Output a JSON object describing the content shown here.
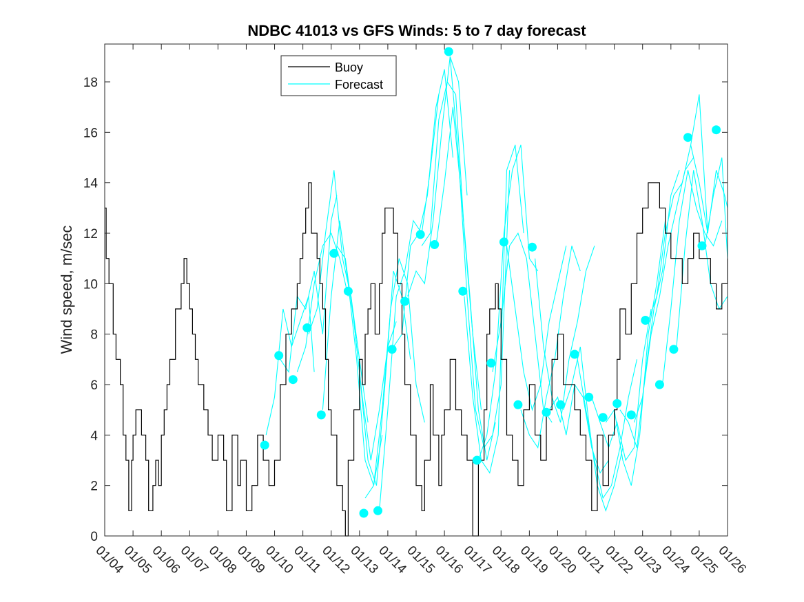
{
  "chart_data": {
    "type": "line",
    "title": "NDBC 41013 vs GFS Winds: 5 to 7 day forecast",
    "xlabel": "",
    "ylabel": "Wind speed, m/sec",
    "xlim": [
      0,
      22
    ],
    "ylim": [
      0,
      19.5
    ],
    "yticks": [
      0,
      2,
      4,
      6,
      8,
      10,
      12,
      14,
      16,
      18
    ],
    "xtick_labels": [
      "01/04",
      "01/05",
      "01/06",
      "01/07",
      "01/08",
      "01/09",
      "01/10",
      "01/11",
      "01/12",
      "01/13",
      "01/14",
      "01/15",
      "01/16",
      "01/17",
      "01/18",
      "01/19",
      "01/20",
      "01/21",
      "01/22",
      "01/23",
      "01/24",
      "01/25",
      "01/26"
    ],
    "legend": {
      "position": "top-center",
      "entries": [
        "Buoy",
        "Forecast"
      ]
    },
    "colors": {
      "buoy": "#000000",
      "forecast": "#00FFFF",
      "markers": "#00FFFF"
    },
    "series": [
      {
        "name": "Buoy",
        "x": [
          0,
          0.05,
          0.15,
          0.3,
          0.4,
          0.55,
          0.65,
          0.75,
          0.85,
          0.95,
          1.0,
          1.1,
          1.2,
          1.3,
          1.45,
          1.55,
          1.7,
          1.8,
          1.9,
          2.0,
          2.1,
          2.2,
          2.3,
          2.5,
          2.7,
          2.8,
          2.9,
          3.0,
          3.1,
          3.2,
          3.3,
          3.5,
          3.65,
          3.8,
          4.0,
          4.2,
          4.3,
          4.5,
          4.7,
          4.8,
          5.0,
          5.2,
          5.4,
          5.6,
          5.8,
          6.0,
          6.2,
          6.4,
          6.6,
          6.8,
          6.9,
          7.0,
          7.1,
          7.2,
          7.3,
          7.5,
          7.6,
          7.7,
          7.8,
          7.9,
          8.0,
          8.2,
          8.4,
          8.5,
          8.6,
          8.8,
          9.0,
          9.1,
          9.2,
          9.3,
          9.4,
          9.55,
          9.7,
          9.8,
          9.9,
          10.1,
          10.2,
          10.35,
          10.5,
          10.6,
          10.8,
          11.0,
          11.2,
          11.3,
          11.5,
          11.6,
          11.8,
          11.9,
          12.0,
          12.2,
          12.4,
          12.6,
          12.8,
          13.0,
          13.2,
          13.4,
          13.5,
          13.6,
          13.8,
          13.9,
          14.0,
          14.2,
          14.4,
          14.6,
          14.8,
          15.0,
          15.2,
          15.4,
          15.6,
          15.8,
          16.0,
          16.2,
          16.4,
          16.6,
          16.8,
          17.0,
          17.2,
          17.4,
          17.6,
          17.8,
          18.0,
          18.1,
          18.2,
          18.4,
          18.6,
          18.8,
          19.0,
          19.2,
          19.4,
          19.6,
          19.8,
          20.0,
          20.2,
          20.4,
          20.6,
          20.8,
          21.0,
          21.2,
          21.4,
          21.6,
          21.8,
          22.0
        ],
        "values": [
          13,
          11,
          10,
          8,
          7,
          6,
          4,
          3,
          1,
          3,
          4,
          5,
          5,
          4,
          3,
          1,
          2,
          3,
          2,
          4,
          5,
          6,
          7,
          9,
          10,
          11,
          10,
          9,
          8,
          7,
          6,
          5,
          4,
          3,
          4,
          3,
          1,
          4,
          2,
          3,
          1,
          2,
          4,
          3,
          2,
          3,
          6,
          8,
          9,
          10,
          11,
          12,
          13,
          14,
          12,
          11,
          10,
          9,
          7,
          5,
          4,
          2,
          1,
          0,
          3,
          5,
          7,
          6,
          8,
          9,
          10,
          8,
          10,
          12,
          13,
          13,
          12,
          10,
          8,
          6,
          4,
          2,
          1,
          3,
          6,
          4,
          2,
          4,
          5,
          7,
          5,
          4,
          3,
          0,
          3,
          5,
          8,
          9,
          10,
          9,
          7,
          4,
          3,
          2,
          5,
          6,
          4,
          3,
          5,
          7,
          8,
          6,
          6,
          5,
          4,
          3,
          1,
          4,
          2,
          4,
          5,
          7,
          9,
          8,
          10,
          12,
          13,
          14,
          14,
          13,
          12,
          11,
          11,
          10,
          11,
          12,
          11,
          11,
          10,
          9,
          10,
          11
        ],
        "note": "Buoy series is the piecewise-step observed wind speed; values approximated from the plotted trace, and the renderer draws this trace from the x/values list above."
      }
    ],
    "forecast_markers": {
      "x": [
        5.65,
        6.15,
        6.65,
        7.15,
        7.65,
        8.1,
        8.6,
        9.15,
        9.65,
        10.15,
        10.6,
        11.15,
        11.65,
        12.15,
        12.65,
        13.15,
        13.65,
        14.1,
        14.6,
        15.1,
        15.6,
        16.1,
        16.6,
        17.1,
        17.6,
        18.1,
        18.6,
        19.1,
        19.6,
        20.1,
        20.6,
        21.1,
        21.6
      ],
      "values": [
        3.6,
        7.15,
        6.2,
        8.25,
        4.8,
        11.2,
        9.7,
        0.9,
        1.0,
        7.4,
        9.3,
        11.95,
        11.55,
        19.2,
        9.7,
        3.0,
        6.85,
        11.65,
        5.2,
        11.45,
        4.9,
        5.2,
        7.2,
        5.5,
        4.7,
        5.25,
        4.8,
        8.55,
        6.0,
        7.4,
        15.8,
        11.5,
        16.1
      ]
    },
    "forecast_lines": [
      {
        "x": [
          5.7,
          6.0,
          6.3,
          6.6,
          6.9,
          7.2,
          7.4
        ],
        "values": [
          4,
          5.5,
          9,
          7.5,
          8.5,
          9.5,
          6.5
        ]
      },
      {
        "x": [
          6.2,
          6.5,
          6.8,
          7.1,
          7.4,
          7.7,
          8.0,
          8.2
        ],
        "values": [
          7.0,
          6.5,
          9.5,
          9.0,
          10.5,
          8.0,
          12.5,
          13.5
        ]
      },
      {
        "x": [
          6.8,
          7.1,
          7.4,
          7.7,
          8.0,
          8.3,
          8.6
        ],
        "values": [
          6.5,
          7.5,
          10.0,
          11.5,
          12.0,
          11.0,
          9.5
        ]
      },
      {
        "x": [
          7.2,
          7.5,
          7.8,
          8.1,
          8.4,
          8.7,
          9.0,
          9.3
        ],
        "values": [
          8.0,
          9.0,
          12.0,
          14.5,
          11.0,
          9.5,
          7.0,
          4.5
        ]
      },
      {
        "x": [
          7.7,
          8.0,
          8.3,
          8.6,
          8.9,
          9.2,
          9.5,
          9.8
        ],
        "values": [
          5.0,
          9.5,
          12.5,
          10.0,
          7.0,
          3.0,
          2.0,
          4.0
        ]
      },
      {
        "x": [
          8.2,
          8.5,
          8.8,
          9.1,
          9.4,
          9.7,
          10.0,
          10.3
        ],
        "values": [
          11.5,
          11.0,
          8.5,
          5.5,
          3.0,
          5.0,
          7.5,
          8.5
        ]
      },
      {
        "x": [
          8.7,
          9.0,
          9.3,
          9.6,
          9.9,
          10.2,
          10.5,
          10.8
        ],
        "values": [
          9.5,
          6.5,
          3.0,
          2.0,
          6.0,
          10.5,
          9.5,
          7.0
        ]
      },
      {
        "x": [
          9.2,
          9.5,
          9.8,
          10.1,
          10.4,
          10.7,
          11.0,
          11.3
        ],
        "values": [
          1.5,
          2.0,
          5.0,
          9.0,
          11.0,
          10.0,
          6.0,
          4.5
        ]
      },
      {
        "x": [
          9.7,
          10.0,
          10.3,
          10.6,
          10.9,
          11.2,
          11.5,
          11.8
        ],
        "values": [
          1.0,
          5.0,
          9.5,
          10.5,
          12.5,
          12.0,
          14.5,
          17.5
        ]
      },
      {
        "x": [
          10.2,
          10.5,
          10.8,
          11.1,
          11.4,
          11.7,
          12.0,
          12.3
        ],
        "values": [
          7.5,
          8.0,
          11.5,
          12.0,
          13.5,
          17.0,
          18.5,
          15.0
        ]
      },
      {
        "x": [
          10.7,
          11.0,
          11.3,
          11.6,
          11.9,
          12.2,
          12.5,
          12.8
        ],
        "values": [
          9.5,
          10.5,
          10.0,
          12.5,
          16.0,
          19.0,
          18.0,
          13.5
        ]
      },
      {
        "x": [
          11.2,
          11.5,
          11.8,
          12.1,
          12.4,
          12.7,
          13.0,
          13.3
        ],
        "values": [
          11.5,
          12.0,
          16.5,
          18.0,
          17.5,
          12.0,
          8.0,
          5.0
        ]
      },
      {
        "x": [
          11.7,
          12.0,
          12.3,
          12.6,
          12.9,
          13.2,
          13.5,
          13.8
        ],
        "values": [
          11.5,
          14.0,
          17.0,
          13.5,
          9.5,
          5.0,
          3.0,
          4.5
        ]
      },
      {
        "x": [
          12.2,
          12.5,
          12.8,
          13.1,
          13.4,
          13.7,
          14.0,
          14.3
        ],
        "values": [
          19.0,
          15.0,
          9.5,
          5.0,
          3.5,
          4.0,
          6.0,
          14.5
        ]
      },
      {
        "x": [
          12.7,
          13.0,
          13.3,
          13.6,
          13.9,
          14.2,
          14.5,
          14.8
        ],
        "values": [
          9.5,
          5.5,
          3.0,
          2.5,
          4.0,
          14.5,
          15.5,
          12.0
        ]
      },
      {
        "x": [
          13.2,
          13.5,
          13.8,
          14.1,
          14.4,
          14.7,
          15.0,
          15.3
        ],
        "values": [
          3.0,
          4.0,
          6.5,
          12.0,
          14.5,
          15.5,
          11.0,
          10.5
        ]
      },
      {
        "x": [
          13.7,
          14.0,
          14.3,
          14.6,
          14.9,
          15.2,
          15.5,
          15.8
        ],
        "values": [
          6.5,
          8.5,
          11.5,
          12.0,
          11.0,
          8.0,
          5.0,
          4.5
        ]
      },
      {
        "x": [
          14.2,
          14.5,
          14.8,
          15.1,
          15.4,
          15.7,
          16.0,
          16.3
        ],
        "values": [
          11.5,
          9.0,
          6.5,
          5.0,
          6.0,
          8.5,
          10.0,
          11.5
        ]
      },
      {
        "x": [
          14.7,
          15.0,
          15.3,
          15.6,
          15.9,
          16.2,
          16.5,
          16.8
        ],
        "values": [
          5.0,
          4.0,
          3.5,
          5.5,
          7.0,
          9.5,
          11.5,
          10.5
        ]
      },
      {
        "x": [
          15.2,
          15.5,
          15.8,
          16.1,
          16.4,
          16.7,
          17.0,
          17.3
        ],
        "values": [
          11.0,
          7.5,
          5.5,
          4.5,
          7.0,
          8.5,
          10.5,
          11.5
        ]
      },
      {
        "x": [
          15.7,
          16.0,
          16.3,
          16.6,
          16.9,
          17.2,
          17.5,
          17.8
        ],
        "values": [
          5.0,
          5.5,
          4.0,
          6.0,
          5.5,
          3.5,
          2.5,
          3.0
        ]
      },
      {
        "x": [
          16.2,
          16.5,
          16.8,
          17.1,
          17.4,
          17.7,
          18.0,
          18.3
        ],
        "values": [
          5.0,
          6.0,
          7.5,
          4.5,
          2.0,
          1.0,
          2.0,
          3.5
        ]
      },
      {
        "x": [
          16.7,
          17.0,
          17.3,
          17.6,
          17.9,
          18.2,
          18.5,
          18.8
        ],
        "values": [
          7.0,
          5.0,
          3.0,
          1.5,
          2.0,
          3.5,
          5.5,
          7.0
        ]
      },
      {
        "x": [
          17.2,
          17.5,
          17.8,
          18.1,
          18.4,
          18.7,
          19.0,
          19.3
        ],
        "values": [
          5.5,
          4.5,
          3.5,
          4.5,
          3.0,
          3.5,
          7.0,
          9.0
        ]
      },
      {
        "x": [
          17.7,
          18.0,
          18.3,
          18.6,
          18.9,
          19.2,
          19.5,
          19.8
        ],
        "values": [
          4.5,
          5.0,
          3.0,
          2.0,
          4.0,
          8.0,
          10.0,
          12.5
        ]
      },
      {
        "x": [
          18.2,
          18.5,
          18.8,
          19.1,
          19.4,
          19.7,
          20.0,
          20.3
        ],
        "values": [
          5.0,
          4.5,
          3.5,
          6.5,
          9.0,
          10.5,
          13.5,
          14.5
        ]
      },
      {
        "x": [
          18.7,
          19.0,
          19.3,
          19.6,
          19.9,
          20.2,
          20.5,
          20.8
        ],
        "values": [
          4.5,
          5.5,
          8.0,
          9.5,
          11.5,
          13.0,
          14.5,
          15.0
        ]
      },
      {
        "x": [
          19.2,
          19.5,
          19.8,
          20.1,
          20.4,
          20.7,
          21.0,
          21.3
        ],
        "values": [
          8.5,
          9.5,
          12.0,
          13.5,
          14.0,
          15.5,
          17.5,
          12.0
        ]
      },
      {
        "x": [
          19.7,
          20.0,
          20.3,
          20.6,
          20.9,
          21.2,
          21.5,
          21.8
        ],
        "values": [
          6.0,
          9.0,
          12.5,
          14.5,
          13.0,
          12.0,
          11.5,
          12.5
        ]
      },
      {
        "x": [
          20.2,
          20.5,
          20.8,
          21.1,
          21.4,
          21.7,
          22.0
        ],
        "values": [
          7.5,
          11.5,
          14.5,
          12.5,
          10.0,
          9.0,
          9.5
        ]
      },
      {
        "x": [
          20.7,
          21.0,
          21.3,
          21.6,
          21.9,
          22.0
        ],
        "values": [
          15.5,
          14.0,
          12.0,
          14.5,
          13.5,
          13.0
        ]
      },
      {
        "x": [
          21.2,
          21.5,
          21.8,
          22.0
        ],
        "values": [
          11.5,
          13.5,
          15.0,
          11.0
        ]
      }
    ]
  }
}
